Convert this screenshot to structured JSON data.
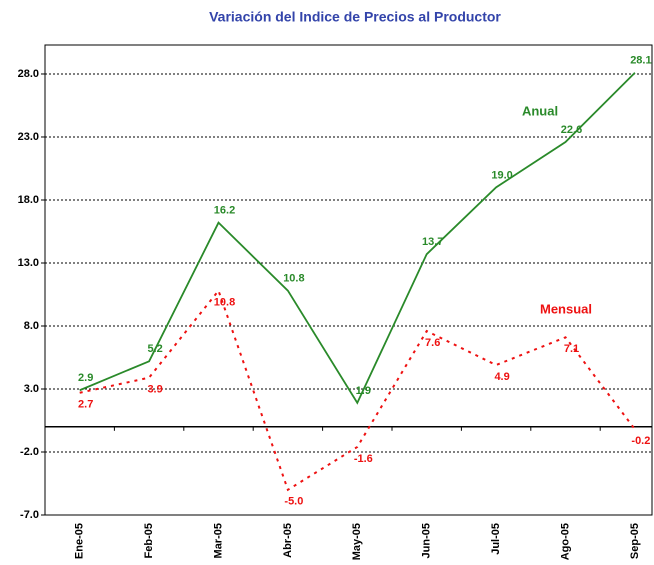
{
  "chart_data": {
    "type": "line",
    "title": "Variación del Indice de Precios al Productor",
    "categories": [
      "Ene-05",
      "Feb-05",
      "Mar-05",
      "Abr-05",
      "May-05",
      "Jun-05",
      "Jul-05",
      "Ago-05",
      "Sep-05"
    ],
    "series": [
      {
        "name": "Anual",
        "color": "#2a8a2a",
        "dashed": false,
        "values": [
          2.9,
          5.2,
          16.2,
          10.8,
          1.9,
          13.7,
          19.0,
          22.6,
          28.1
        ],
        "value_labels": [
          "2.9",
          "5.2",
          "16.2",
          "10.8",
          "1.9",
          "13.7",
          "19.0",
          "22.6",
          "28.1"
        ]
      },
      {
        "name": "Mensual",
        "color": "#ee1111",
        "dashed": true,
        "values": [
          2.7,
          3.9,
          10.8,
          -5.0,
          -1.6,
          7.6,
          4.9,
          7.1,
          -0.2
        ],
        "value_labels": [
          "2.7",
          "3.9",
          "10.8",
          "-5.0",
          "-1.6",
          "7.6",
          "4.9",
          "7.1",
          "-0.2"
        ]
      }
    ],
    "ylim": [
      -7,
      30.3
    ],
    "yticks": [
      {
        "value": -7,
        "label": "-7.0"
      },
      {
        "value": -2,
        "label": "-2.0"
      },
      {
        "value": 3,
        "label": "3.0"
      },
      {
        "value": 8,
        "label": "8.0"
      },
      {
        "value": 13,
        "label": "13.0"
      },
      {
        "value": 18,
        "label": "18.0"
      },
      {
        "value": 23,
        "label": "23.0"
      },
      {
        "value": 28,
        "label": "28.0"
      }
    ],
    "grid": true
  }
}
